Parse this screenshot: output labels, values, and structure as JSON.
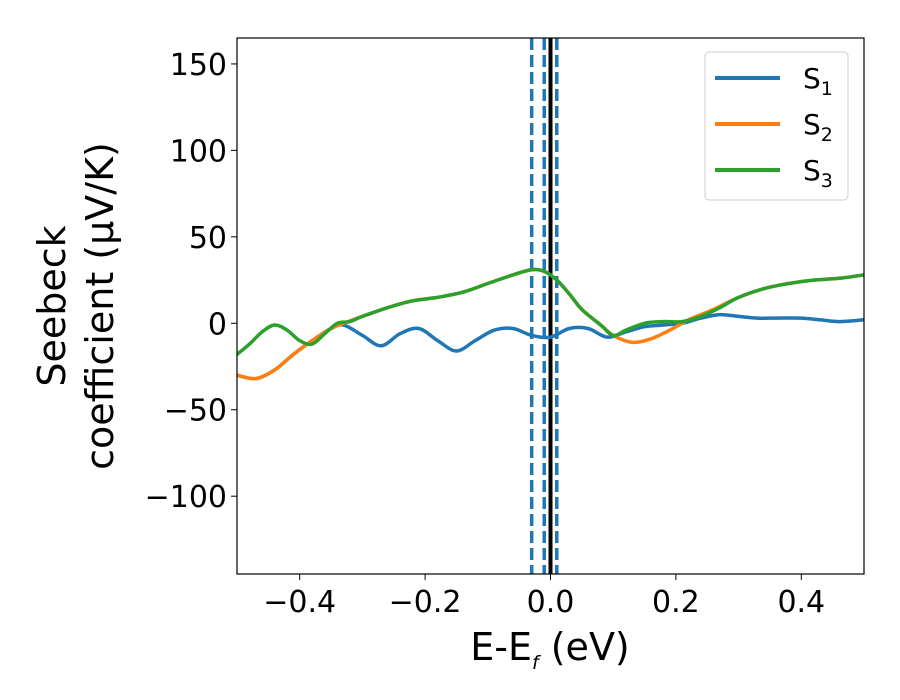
{
  "chart_data": {
    "type": "line",
    "title": "",
    "xlabel": {
      "main": "E-E",
      "subscript": "f",
      "suffix": " (eV)"
    },
    "ylabel": {
      "line1": "Seebeck",
      "line2": "coefficient  (μV/K)"
    },
    "xlim": [
      -0.5,
      0.5
    ],
    "ylim": [
      -145,
      165
    ],
    "xticks": [
      -0.4,
      -0.2,
      0.0,
      0.2,
      0.4
    ],
    "xtick_labels": [
      "−0.4",
      "−0.2",
      "0.0",
      "0.2",
      "0.4"
    ],
    "yticks": [
      150,
      100,
      50,
      0,
      -50,
      -100
    ],
    "ytick_labels": [
      "150",
      "100",
      "50",
      "0",
      "−50",
      "−100"
    ],
    "legend": {
      "position": "top-right"
    },
    "series": [
      {
        "name": "S",
        "subscript": "1",
        "color": "#1f77b4",
        "points": [
          [
            -0.5,
            -30
          ],
          [
            -0.47,
            -32
          ],
          [
            -0.44,
            -27
          ],
          [
            -0.41,
            -18
          ],
          [
            -0.38,
            -10
          ],
          [
            -0.35,
            -3
          ],
          [
            -0.33,
            -1
          ],
          [
            -0.3,
            -7
          ],
          [
            -0.27,
            -13
          ],
          [
            -0.24,
            -6
          ],
          [
            -0.21,
            -3
          ],
          [
            -0.18,
            -10
          ],
          [
            -0.15,
            -16
          ],
          [
            -0.12,
            -10
          ],
          [
            -0.09,
            -4
          ],
          [
            -0.06,
            -3
          ],
          [
            -0.03,
            -7
          ],
          [
            0.0,
            -8
          ],
          [
            0.03,
            -3
          ],
          [
            0.06,
            -3
          ],
          [
            0.09,
            -8
          ],
          [
            0.12,
            -5
          ],
          [
            0.15,
            -2
          ],
          [
            0.18,
            -1
          ],
          [
            0.21,
            0
          ],
          [
            0.24,
            3
          ],
          [
            0.27,
            5
          ],
          [
            0.3,
            4
          ],
          [
            0.33,
            3
          ],
          [
            0.36,
            3
          ],
          [
            0.4,
            3
          ],
          [
            0.43,
            2
          ],
          [
            0.46,
            1
          ],
          [
            0.5,
            2
          ]
        ]
      },
      {
        "name": "S",
        "subscript": "2",
        "color": "#ff7f0e",
        "points": [
          [
            -0.5,
            -30
          ],
          [
            -0.47,
            -32
          ],
          [
            -0.44,
            -27
          ],
          [
            -0.41,
            -18
          ],
          [
            -0.38,
            -10
          ],
          [
            -0.35,
            -3
          ],
          [
            -0.33,
            0
          ],
          [
            -0.3,
            4
          ],
          [
            -0.26,
            9
          ],
          [
            -0.22,
            13
          ],
          [
            -0.18,
            15
          ],
          [
            -0.14,
            18
          ],
          [
            -0.1,
            23
          ],
          [
            -0.06,
            28
          ],
          [
            -0.03,
            31
          ],
          [
            -0.01,
            30
          ],
          [
            0.01,
            25
          ],
          [
            0.03,
            17
          ],
          [
            0.05,
            8
          ],
          [
            0.08,
            -1
          ],
          [
            0.1,
            -7
          ],
          [
            0.13,
            -11
          ],
          [
            0.16,
            -9
          ],
          [
            0.19,
            -4
          ],
          [
            0.22,
            2
          ],
          [
            0.26,
            8
          ],
          [
            0.3,
            15
          ],
          [
            0.34,
            20
          ],
          [
            0.38,
            23
          ],
          [
            0.42,
            25
          ],
          [
            0.46,
            26
          ],
          [
            0.5,
            28
          ]
        ]
      },
      {
        "name": "S",
        "subscript": "3",
        "color": "#2ca02c",
        "points": [
          [
            -0.5,
            -18
          ],
          [
            -0.48,
            -12
          ],
          [
            -0.46,
            -5
          ],
          [
            -0.44,
            -1
          ],
          [
            -0.42,
            -4
          ],
          [
            -0.4,
            -10
          ],
          [
            -0.38,
            -12
          ],
          [
            -0.36,
            -6
          ],
          [
            -0.34,
            0
          ],
          [
            -0.32,
            1
          ],
          [
            -0.3,
            4
          ],
          [
            -0.26,
            9
          ],
          [
            -0.22,
            13
          ],
          [
            -0.18,
            15
          ],
          [
            -0.14,
            18
          ],
          [
            -0.1,
            23
          ],
          [
            -0.06,
            28
          ],
          [
            -0.03,
            31
          ],
          [
            -0.01,
            30
          ],
          [
            0.01,
            25
          ],
          [
            0.03,
            17
          ],
          [
            0.05,
            8
          ],
          [
            0.08,
            -1
          ],
          [
            0.1,
            -7
          ],
          [
            0.12,
            -4
          ],
          [
            0.15,
            0
          ],
          [
            0.18,
            1
          ],
          [
            0.21,
            1
          ],
          [
            0.24,
            4
          ],
          [
            0.27,
            9
          ],
          [
            0.3,
            15
          ],
          [
            0.34,
            20
          ],
          [
            0.38,
            23
          ],
          [
            0.42,
            25
          ],
          [
            0.46,
            26
          ],
          [
            0.5,
            28
          ]
        ]
      }
    ],
    "vertical_lines": [
      {
        "x": -0.03,
        "style": "dashed",
        "color": "#1f77b4"
      },
      {
        "x": -0.01,
        "style": "dashed",
        "color": "#1f77b4"
      },
      {
        "x": 0.01,
        "style": "dashed",
        "color": "#1f77b4"
      },
      {
        "x": 0.0,
        "style": "solid",
        "color": "#000000"
      }
    ]
  }
}
